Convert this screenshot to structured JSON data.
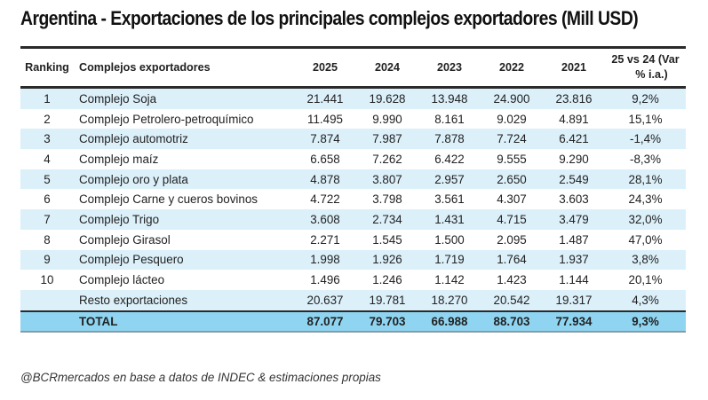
{
  "title": "Argentina - Exportaciones de los principales complejos exportadores (Mill USD)",
  "table": {
    "headers": {
      "ranking": "Ranking",
      "name": "Complejos exportadores",
      "y2025": "2025",
      "y2024": "2024",
      "y2023": "2023",
      "y2022": "2022",
      "y2021": "2021",
      "var_line1": "25 vs 24 (Var",
      "var_line2": "% i.a.)"
    },
    "rows": [
      {
        "ranking": "1",
        "name": "Complejo Soja",
        "y2025": "21.441",
        "y2024": "19.628",
        "y2023": "13.948",
        "y2022": "24.900",
        "y2021": "23.816",
        "var": "9,2%"
      },
      {
        "ranking": "2",
        "name": "Complejo Petrolero-petroquímico",
        "y2025": "11.495",
        "y2024": "9.990",
        "y2023": "8.161",
        "y2022": "9.029",
        "y2021": "4.891",
        "var": "15,1%"
      },
      {
        "ranking": "3",
        "name": "Complejo automotriz",
        "y2025": "7.874",
        "y2024": "7.987",
        "y2023": "7.878",
        "y2022": "7.724",
        "y2021": "6.421",
        "var": "-1,4%"
      },
      {
        "ranking": "4",
        "name": "Complejo maíz",
        "y2025": "6.658",
        "y2024": "7.262",
        "y2023": "6.422",
        "y2022": "9.555",
        "y2021": "9.290",
        "var": "-8,3%"
      },
      {
        "ranking": "5",
        "name": "Complejo oro y plata",
        "y2025": "4.878",
        "y2024": "3.807",
        "y2023": "2.957",
        "y2022": "2.650",
        "y2021": "2.549",
        "var": "28,1%"
      },
      {
        "ranking": "6",
        "name": "Complejo Carne y cueros bovinos",
        "y2025": "4.722",
        "y2024": "3.798",
        "y2023": "3.561",
        "y2022": "4.307",
        "y2021": "3.603",
        "var": "24,3%"
      },
      {
        "ranking": "7",
        "name": "Complejo Trigo",
        "y2025": "3.608",
        "y2024": "2.734",
        "y2023": "1.431",
        "y2022": "4.715",
        "y2021": "3.479",
        "var": "32,0%"
      },
      {
        "ranking": "8",
        "name": "Complejo Girasol",
        "y2025": "2.271",
        "y2024": "1.545",
        "y2023": "1.500",
        "y2022": "2.095",
        "y2021": "1.487",
        "var": "47,0%"
      },
      {
        "ranking": "9",
        "name": "Complejo Pesquero",
        "y2025": "1.998",
        "y2024": "1.926",
        "y2023": "1.719",
        "y2022": "1.764",
        "y2021": "1.937",
        "var": "3,8%"
      },
      {
        "ranking": "10",
        "name": "Complejo lácteo",
        "y2025": "1.496",
        "y2024": "1.246",
        "y2023": "1.142",
        "y2022": "1.423",
        "y2021": "1.144",
        "var": "20,1%"
      },
      {
        "ranking": "",
        "name": "Resto exportaciones",
        "y2025": "20.637",
        "y2024": "19.781",
        "y2023": "18.270",
        "y2022": "20.542",
        "y2021": "19.317",
        "var": "4,3%"
      }
    ],
    "total": {
      "ranking": "",
      "name": "TOTAL",
      "y2025": "87.077",
      "y2024": "79.703",
      "y2023": "66.988",
      "y2022": "88.703",
      "y2021": "77.934",
      "var": "9,3%"
    }
  },
  "colors": {
    "row_alt": "#dcf0fa",
    "total_bg": "#8fd5f2",
    "rule": "#2a2a2a"
  },
  "source": "@BCRmercados en base a datos de INDEC & estimaciones propias"
}
